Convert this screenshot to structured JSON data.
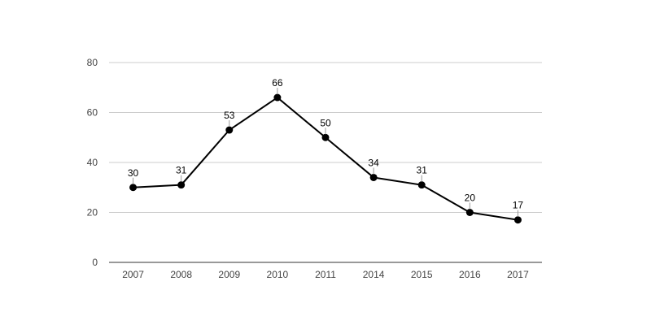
{
  "chart_data": {
    "type": "line",
    "title": "",
    "xlabel": "",
    "ylabel": "",
    "categories": [
      "2007",
      "2008",
      "2009",
      "2010",
      "2011",
      "2014",
      "2015",
      "2016",
      "2017"
    ],
    "series": [
      {
        "values": [
          30,
          31,
          53,
          66,
          50,
          34,
          31,
          20,
          17
        ]
      }
    ],
    "ylim": [
      0,
      80
    ],
    "yticks": [
      0,
      20,
      40,
      60,
      80
    ],
    "grid": true,
    "legend": "none",
    "data_labels": true,
    "colors": {
      "line": "#000000",
      "marker": "#000000",
      "grid": "#cccccc",
      "axis": "#333333",
      "label_leader": "#999999"
    }
  }
}
